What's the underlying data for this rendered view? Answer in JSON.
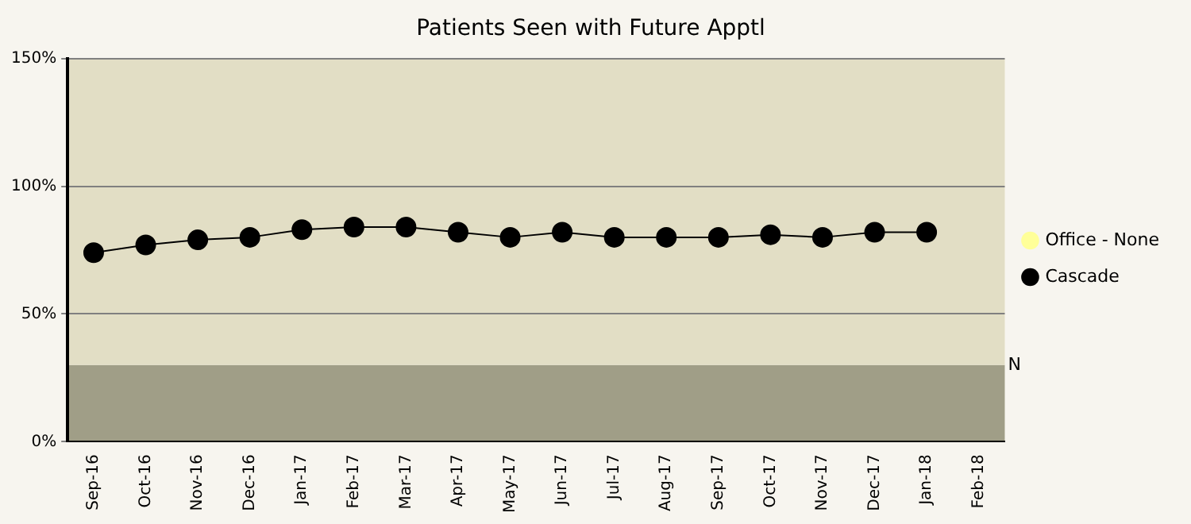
{
  "chart_data": {
    "type": "line",
    "title": "Patients Seen with Future Apptl",
    "categories": [
      "Sep-16",
      "Oct-16",
      "Nov-16",
      "Dec-16",
      "Jan-17",
      "Feb-17",
      "Mar-17",
      "Apr-17",
      "May-17",
      "Jun-17",
      "Jul-17",
      "Aug-17",
      "Sep-17",
      "Oct-17",
      "Nov-17",
      "Dec-17",
      "Jan-18",
      "Feb-18"
    ],
    "series": [
      {
        "name": "Office - None",
        "color": "#ffff99",
        "values": [
          null,
          null,
          null,
          null,
          null,
          null,
          null,
          null,
          null,
          null,
          null,
          null,
          null,
          null,
          null,
          null,
          null,
          null
        ]
      },
      {
        "name": "Cascade",
        "color": "#000000",
        "values": [
          74,
          77,
          79,
          80,
          83,
          84,
          84,
          82,
          80,
          82,
          80,
          80,
          80,
          81,
          80,
          82,
          82,
          null
        ]
      }
    ],
    "ylim": [
      0,
      150
    ],
    "yticks": [
      {
        "value": 0,
        "label": "0%"
      },
      {
        "value": 50,
        "label": "50%"
      },
      {
        "value": 100,
        "label": "100%"
      },
      {
        "value": 150,
        "label": "150%"
      }
    ],
    "bands": [
      {
        "axis": "y",
        "from": 0,
        "to": 30,
        "label": "N",
        "color": "#a09e87"
      },
      {
        "axis": "y",
        "from": 30,
        "to": 150,
        "label": null,
        "color": "#e2dec5"
      }
    ],
    "grid": "y",
    "legend": "right",
    "marker": "circle",
    "line_style": "solid"
  }
}
